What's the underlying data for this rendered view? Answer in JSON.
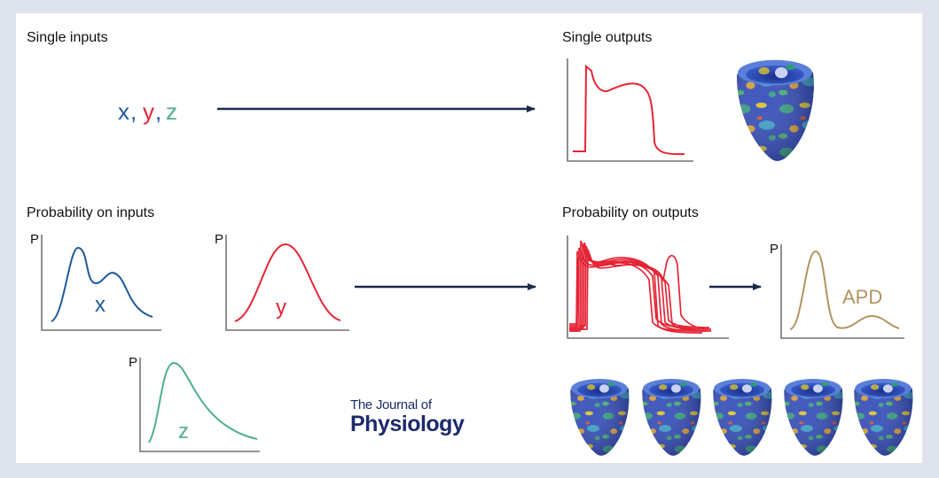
{
  "labels": {
    "single_inputs": "Single inputs",
    "single_outputs": "Single outputs",
    "probability_inputs": "Probability on inputs",
    "probability_outputs": "Probability on outputs"
  },
  "inputs": {
    "x": "x",
    "comma1": ",",
    "y": "y",
    "comma2": ",",
    "z": "z"
  },
  "plots": {
    "p_label": "P",
    "dist_x": "x",
    "dist_y": "y",
    "dist_z": "z",
    "apd": "APD"
  },
  "journal": {
    "line1": "The Journal of",
    "line2": "Physiology"
  },
  "colors": {
    "background": "#dfe3ee",
    "x": "#1f5a99",
    "y": "#e52536",
    "z": "#4fae88",
    "apd": "#b39260",
    "arrow": "#1c2b4a",
    "journal": "#1c2b6b"
  },
  "icons": [
    "heart-ventricle-icon"
  ]
}
